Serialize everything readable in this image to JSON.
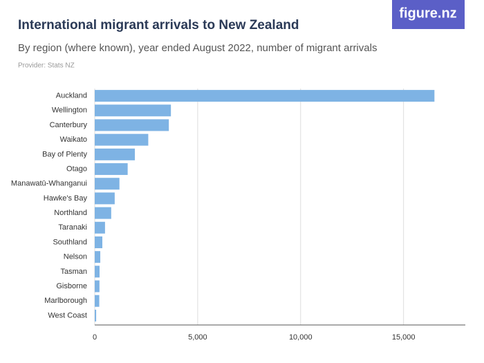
{
  "logo": "figure.nz",
  "chart_data": {
    "type": "bar",
    "orientation": "horizontal",
    "title": "International migrant arrivals to New Zealand",
    "subtitle": "By region (where known), year ended August 2022, number of migrant arrivals",
    "provider": "Provider: Stats NZ",
    "categories": [
      "Auckland",
      "Wellington",
      "Canterbury",
      "Waikato",
      "Bay of Plenty",
      "Otago",
      "Manawatū-Whanganui",
      "Hawke's Bay",
      "Northland",
      "Taranaki",
      "Southland",
      "Nelson",
      "Tasman",
      "Gisborne",
      "Marlborough",
      "West Coast"
    ],
    "values": [
      16500,
      3700,
      3600,
      2600,
      1950,
      1600,
      1200,
      970,
      800,
      500,
      370,
      270,
      235,
      230,
      220,
      70
    ],
    "color": "#7eb3e4",
    "xlim": [
      0,
      18000
    ],
    "xticks": [
      0,
      {
        "value": 5000,
        "label": "5,000"
      },
      {
        "value": 10000,
        "label": "10,000"
      },
      {
        "value": 15000,
        "label": "15,000"
      }
    ],
    "grid": true
  }
}
